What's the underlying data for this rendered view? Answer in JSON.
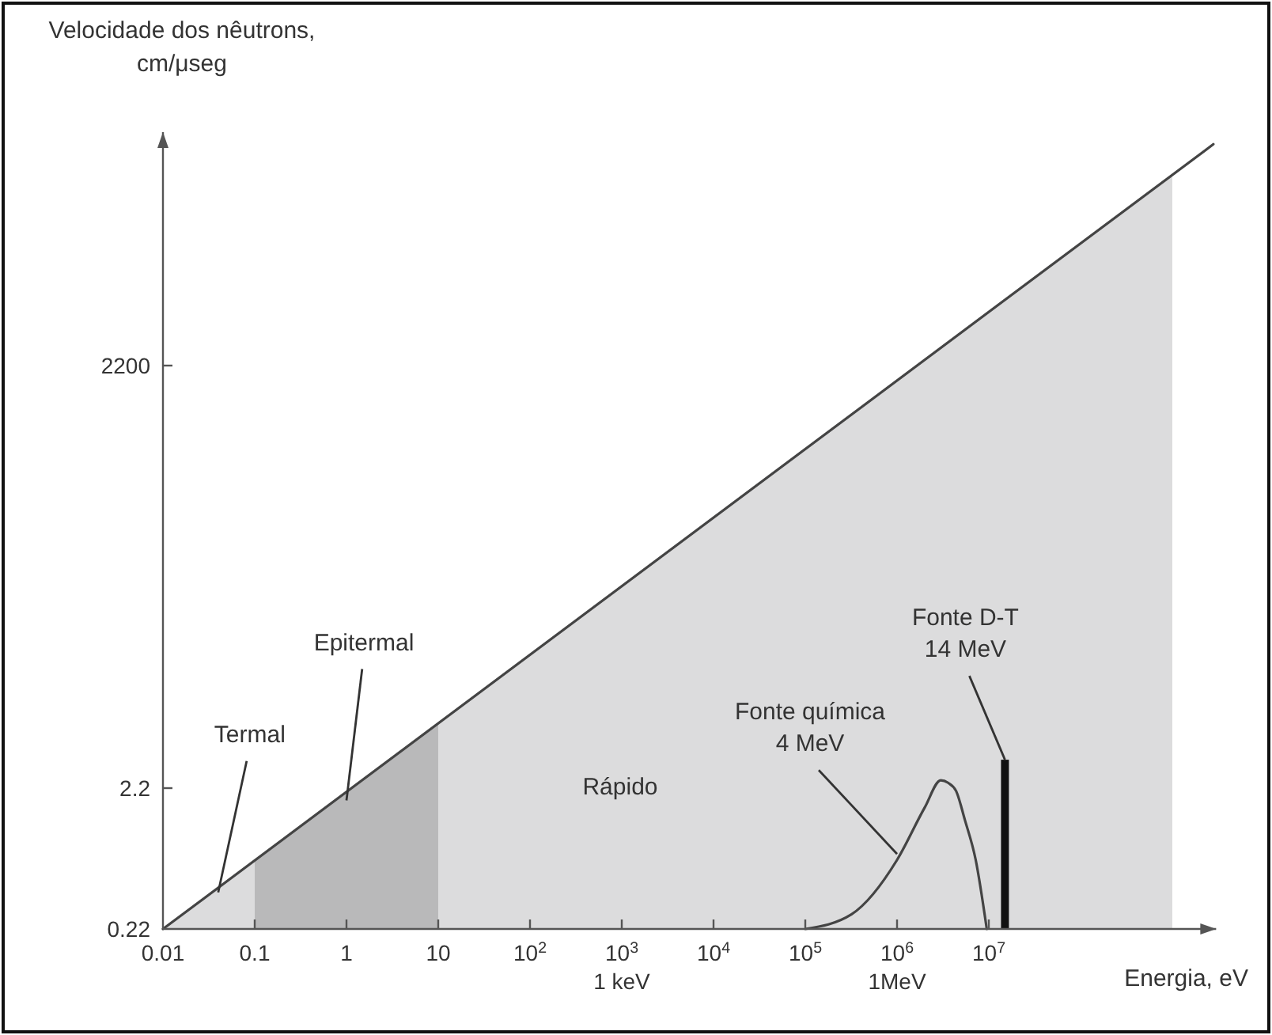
{
  "chart_data": {
    "type": "line",
    "xlabel": "Energia, eV",
    "ylabel": "Velocidade dos nêutrons,\ncm/μseg",
    "log": "xy",
    "xlim": [
      0.01,
      3000000000
    ],
    "ylim": [
      0.22,
      100000
    ],
    "xticks": [
      0.01,
      0.1,
      1,
      10,
      {
        "value": 100,
        "label": "10$^{2}$"
      },
      {
        "value": 1000,
        "label": "10$^{3}$\n1 keV"
      },
      {
        "value": 10000,
        "label": "10$^{4}$"
      },
      {
        "value": 100000,
        "label": "10$^{5}$"
      },
      {
        "value": 1000000,
        "label": "10$^{6}$\n1MeV"
      },
      {
        "value": 10000000,
        "label": "10$^{7}$"
      }
    ],
    "yticks": [
      0.22,
      2.2,
      2200
    ],
    "series": [
      {
        "type": "area",
        "color": "#dcdcdd",
        "x": [
          0.01,
          1000000000
        ],
        "values": [
          0.22,
          50000
        ]
      },
      {
        "type": "area",
        "color": "#b9b9ba",
        "x": [
          0.1,
          10
        ],
        "values": [
          0.67,
          6.3
        ]
      },
      {
        "color": "#444444",
        "x": [
          0.01,
          2800000000
        ],
        "values": [
          0.22,
          82000
        ]
      },
      {
        "color": "#444444",
        "x": [
          100000,
          320000,
          1000000,
          2000000,
          3000000,
          3600000,
          4400000,
          5500000,
          7200000,
          9500000
        ],
        "values": [
          0.22,
          0.28,
          0.68,
          1.6,
          2.5,
          2.4,
          2.1,
          1.3,
          0.68,
          0.22
        ]
      },
      {
        "type": "bar",
        "color": "#111111",
        "x": [
          15000000
        ],
        "values": [
          3.5
        ]
      }
    ],
    "annotations": [
      {
        "text": "Termal",
        "x": 0.04,
        "y": 0.4
      },
      {
        "text": "Epitermal",
        "x": 1,
        "y": 1.8
      },
      "Rápido",
      {
        "text": "Fonte química\n4 MeV",
        "x": 1000000,
        "y": 0.75
      },
      {
        "text": "Fonte D-T\n14 MeV",
        "x": 15000000,
        "y": 3.5
      }
    ]
  }
}
